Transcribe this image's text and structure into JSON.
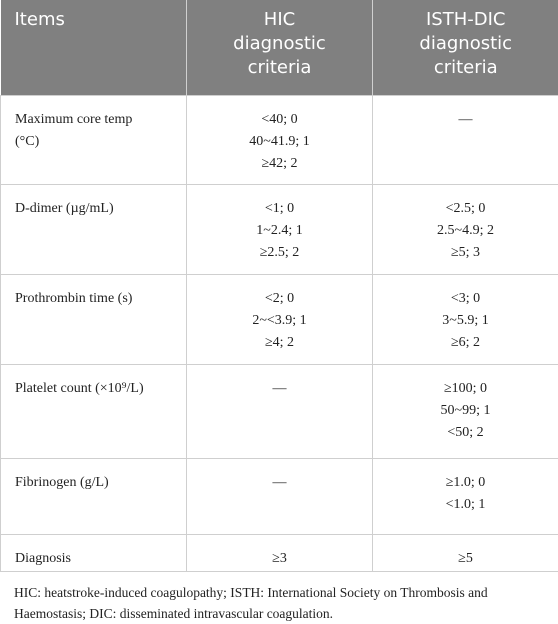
{
  "table": {
    "header": [
      "Items",
      "HIC diagnostic criteria",
      "ISTH-DIC diagnostic criteria"
    ],
    "rows": [
      [
        [
          "Maximum core temp",
          "(°C)"
        ],
        [
          "<40; 0",
          "40~41.9; 1",
          "≥42; 2"
        ],
        [
          "—"
        ]
      ],
      [
        [
          "D-dimer (µg/mL)"
        ],
        [
          "<1; 0",
          "1~2.4; 1",
          "≥2.5; 2"
        ],
        [
          "<2.5; 0",
          "2.5~4.9; 2",
          "≥5; 3"
        ]
      ],
      [
        [
          "Prothrombin time (s)"
        ],
        [
          "<2; 0",
          "2~<3.9; 1",
          "≥4; 2"
        ],
        [
          "<3; 0",
          "3~5.9; 1",
          "≥6; 2"
        ]
      ],
      [
        [
          "Platelet count (×10⁹/L)"
        ],
        [
          "—"
        ],
        [
          "≥100; 0",
          "50~99; 1",
          "<50; 2"
        ]
      ],
      [
        [
          "Fibrinogen (g/L)"
        ],
        [
          "—"
        ],
        [
          "≥1.0; 0",
          "<1.0; 1"
        ]
      ],
      [
        [
          "Diagnosis"
        ],
        [
          "≥3"
        ],
        [
          "≥5"
        ]
      ]
    ],
    "footnote": "HIC: heatstroke-induced coagulopathy; ISTH: International Society on Thrombosis and Haemostasis; DIC: disseminated intravascular coagulation."
  }
}
